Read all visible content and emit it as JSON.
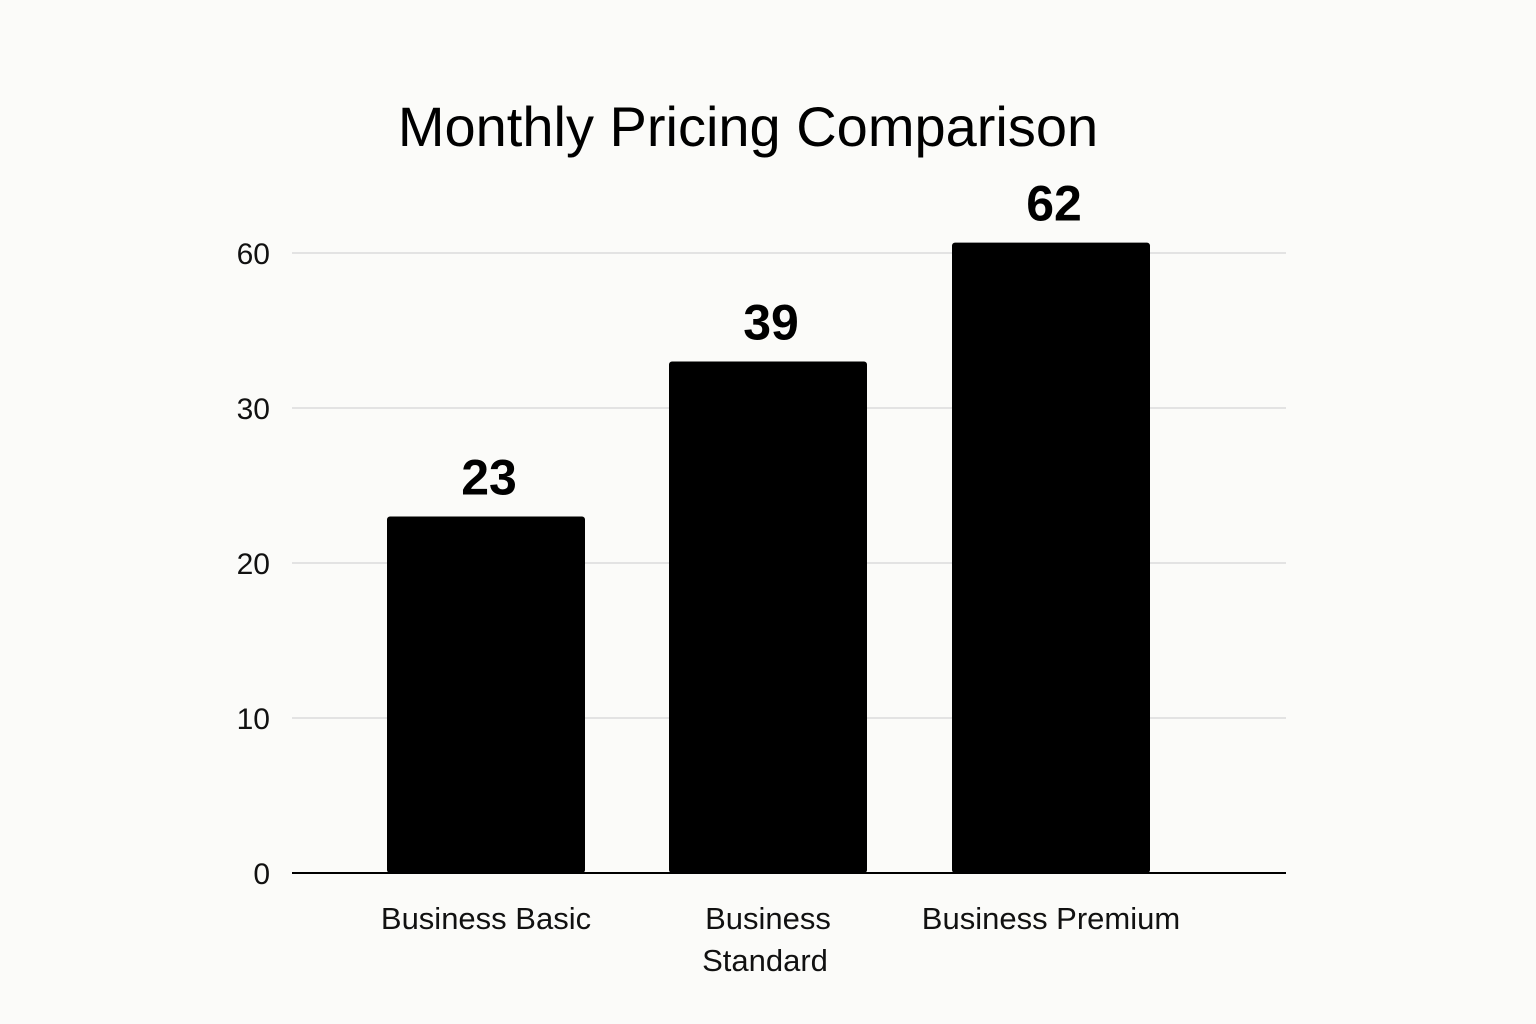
{
  "chart_data": {
    "type": "bar",
    "title": "Monthly Pricing Comparison",
    "xlabel": "",
    "ylabel": "",
    "categories": [
      "Business Basic",
      "Business Standard",
      "Business Premium"
    ],
    "category_lines": [
      [
        "Business Basic"
      ],
      [
        "Business",
        "Standard"
      ],
      [
        "Business Premium"
      ]
    ],
    "values": [
      23,
      39,
      62
    ],
    "data_labels": [
      "23",
      "39",
      "62"
    ],
    "yticks": [
      0,
      10,
      20,
      30,
      60
    ],
    "ytick_labels": [
      "0",
      "10",
      "20",
      "30",
      "60"
    ],
    "grid": true,
    "legend": "none",
    "colors": {
      "bar": "#000000",
      "grid": "#e3e3e3",
      "axis": "#000000",
      "background": "#fbfbf9"
    }
  }
}
